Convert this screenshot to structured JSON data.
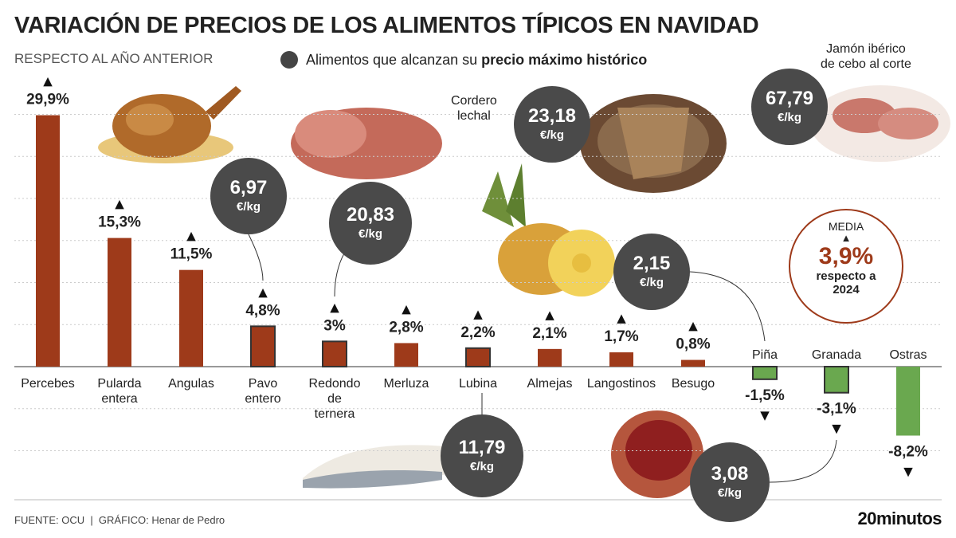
{
  "title": "VARIACIÓN DE PRECIOS DE LOS ALIMENTOS TÍPICOS EN NAVIDAD",
  "subtitle": "RESPECTO AL AÑO ANTERIOR",
  "legend": {
    "text_before": "Alimentos que alcanzan su",
    "text_bold": "precio máximo histórico"
  },
  "chart_data": {
    "type": "bar",
    "categories": [
      "Percebes",
      "Pularda entera",
      "Angulas",
      "Pavo entero",
      "Redondo de ternera",
      "Merluza",
      "Lubina",
      "Almejas",
      "Langostinos",
      "Besugo",
      "Piña",
      "Granada",
      "Ostras"
    ],
    "values": [
      29.9,
      15.3,
      11.5,
      4.8,
      3.0,
      2.8,
      2.2,
      2.1,
      1.7,
      0.8,
      -1.5,
      -3.1,
      -8.2
    ],
    "value_labels": [
      "29,9%",
      "15,3%",
      "11,5%",
      "4,8%",
      "3%",
      "2,8%",
      "2,2%",
      "2,1%",
      "1,7%",
      "0,8%",
      "-1,5%",
      "-3,1%",
      "-8,2%"
    ],
    "max_historic": [
      false,
      false,
      false,
      true,
      true,
      false,
      true,
      false,
      false,
      false,
      true,
      true,
      false
    ],
    "ylim": [
      -10,
      32
    ],
    "colors": {
      "positive": "#9e3a1a",
      "negative": "#6aa84f",
      "outline": "#333333",
      "grid": "#cccccc"
    },
    "grid": true,
    "xlabel": "",
    "ylabel": ""
  },
  "prices": [
    {
      "value": "6,97",
      "unit": "€/kg"
    },
    {
      "value": "20,83",
      "unit": "€/kg"
    },
    {
      "value": "23,18",
      "unit": "€/kg"
    },
    {
      "value": "67,79",
      "unit": "€/kg"
    },
    {
      "value": "2,15",
      "unit": "€/kg"
    },
    {
      "value": "11,79",
      "unit": "€/kg"
    },
    {
      "value": "3,08",
      "unit": "€/kg"
    }
  ],
  "product_labels": {
    "cordero": "Cordero\nlechal",
    "jamon": "Jamón ibérico\nde cebo al corte"
  },
  "media": {
    "label": "MEDIA",
    "value": "3,9%",
    "note": "respecto a 2024"
  },
  "footer": "FUENTE: OCU  |  GRÁFICO: Henar de Pedro",
  "brand": "20minutos"
}
